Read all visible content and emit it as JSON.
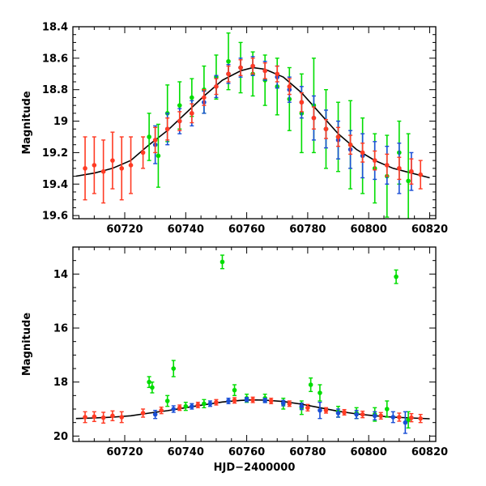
{
  "chart_data": [
    {
      "type": "scatter",
      "title": "",
      "xlabel": "",
      "ylabel": "Magnitude",
      "xlim": [
        60703,
        60822
      ],
      "ylim": [
        19.62,
        18.4
      ],
      "y_inverted": true,
      "xticks": [
        60720,
        60740,
        60760,
        60780,
        60800,
        60820
      ],
      "xtick_labels": [
        "60720",
        "60740",
        "60760",
        "60780",
        "60800",
        "60820"
      ],
      "yticks": [
        18.4,
        18.6,
        18.8,
        19,
        19.2,
        19.4,
        19.6
      ],
      "ytick_labels": [
        "18.4",
        "18.6",
        "18.8",
        "19",
        "19.2",
        "19.4",
        "19.6"
      ],
      "error_bars": true,
      "model": {
        "type": "line",
        "color": "#000000",
        "x": [
          60704,
          60710,
          60716,
          60722,
          60728,
          60734,
          60740,
          60746,
          60752,
          60758,
          60762,
          60766,
          60772,
          60778,
          60784,
          60790,
          60796,
          60802,
          60808,
          60814,
          60820
        ],
        "mag": [
          19.35,
          19.33,
          19.3,
          19.25,
          19.15,
          19.06,
          18.95,
          18.84,
          18.74,
          18.68,
          18.66,
          18.67,
          18.72,
          18.82,
          18.95,
          19.08,
          19.18,
          19.25,
          19.3,
          19.33,
          19.36
        ]
      },
      "series": [
        {
          "color": "#00dd00",
          "x": [
            60728,
            60731,
            60734,
            60738,
            60742,
            60746,
            60750,
            60754,
            60758,
            60762,
            60766,
            60770,
            60774,
            60778,
            60782,
            60786,
            60790,
            60794,
            60798,
            60802,
            60806,
            60810,
            60813
          ],
          "mag": [
            19.1,
            19.22,
            18.95,
            18.9,
            18.85,
            18.8,
            18.72,
            18.62,
            18.66,
            18.7,
            18.74,
            18.78,
            18.86,
            18.95,
            18.9,
            19.05,
            19.1,
            19.15,
            19.22,
            19.3,
            19.35,
            19.2,
            19.38
          ],
          "err": [
            0.15,
            0.2,
            0.18,
            0.15,
            0.12,
            0.15,
            0.14,
            0.18,
            0.16,
            0.14,
            0.16,
            0.18,
            0.2,
            0.25,
            0.3,
            0.25,
            0.22,
            0.28,
            0.24,
            0.22,
            0.26,
            0.2,
            0.3
          ]
        },
        {
          "color": "#1a4fd6",
          "x": [
            60730,
            60734,
            60738,
            60742,
            60746,
            60750,
            60754,
            60758,
            60762,
            60766,
            60770,
            60774,
            60778,
            60782,
            60786,
            60790,
            60794,
            60798,
            60802,
            60806,
            60810,
            60814
          ],
          "mag": [
            19.15,
            19.05,
            19.0,
            18.95,
            18.88,
            18.78,
            18.7,
            18.66,
            18.65,
            18.68,
            18.72,
            18.8,
            18.88,
            18.98,
            19.05,
            19.12,
            19.18,
            19.22,
            19.25,
            19.28,
            19.3,
            19.32
          ],
          "err": [
            0.12,
            0.1,
            0.08,
            0.08,
            0.07,
            0.07,
            0.06,
            0.06,
            0.06,
            0.06,
            0.07,
            0.08,
            0.1,
            0.14,
            0.12,
            0.12,
            0.12,
            0.14,
            0.12,
            0.12,
            0.16,
            0.12
          ]
        },
        {
          "color": "#ff3b24",
          "x": [
            60707,
            60710,
            60713,
            60716,
            60719,
            60722,
            60726,
            60730,
            60734,
            60738,
            60742,
            60746,
            60750,
            60754,
            60758,
            60762,
            60766,
            60770,
            60774,
            60778,
            60782,
            60786,
            60790,
            60794,
            60798,
            60802,
            60806,
            60810,
            60814,
            60817
          ],
          "mag": [
            19.3,
            19.28,
            19.32,
            19.25,
            19.3,
            19.28,
            19.2,
            19.12,
            19.05,
            19.0,
            18.95,
            18.85,
            18.78,
            18.7,
            18.66,
            18.65,
            18.68,
            18.7,
            18.78,
            18.88,
            18.98,
            19.05,
            19.1,
            19.15,
            19.2,
            19.25,
            19.28,
            19.3,
            19.32,
            19.34
          ],
          "err": [
            0.2,
            0.18,
            0.2,
            0.18,
            0.2,
            0.18,
            0.1,
            0.08,
            0.07,
            0.06,
            0.06,
            0.05,
            0.05,
            0.05,
            0.05,
            0.05,
            0.05,
            0.05,
            0.05,
            0.06,
            0.07,
            0.06,
            0.06,
            0.06,
            0.06,
            0.06,
            0.07,
            0.07,
            0.08,
            0.09
          ]
        }
      ]
    },
    {
      "type": "scatter",
      "title": "",
      "xlabel": "HJD−2400000",
      "ylabel": "Magnitude",
      "xlim": [
        60703,
        60822
      ],
      "ylim": [
        20.2,
        13.0
      ],
      "y_inverted": true,
      "xticks": [
        60720,
        60740,
        60760,
        60780,
        60800,
        60820
      ],
      "xtick_labels": [
        "60720",
        "60740",
        "60760",
        "60780",
        "60800",
        "60820"
      ],
      "yticks": [
        14,
        16,
        18,
        20
      ],
      "ytick_labels": [
        "14",
        "16",
        "18",
        "20"
      ],
      "error_bars": true,
      "model": {
        "type": "line",
        "color": "#000000",
        "x": [
          60704,
          60710,
          60716,
          60722,
          60728,
          60734,
          60740,
          60746,
          60752,
          60758,
          60762,
          60766,
          60772,
          60778,
          60784,
          60790,
          60796,
          60802,
          60808,
          60814,
          60820
        ],
        "mag": [
          19.35,
          19.33,
          19.3,
          19.25,
          19.15,
          19.06,
          18.95,
          18.84,
          18.74,
          18.68,
          18.66,
          18.67,
          18.72,
          18.82,
          18.95,
          19.08,
          19.18,
          19.25,
          19.3,
          19.33,
          19.36
        ]
      },
      "series": [
        {
          "color": "#00dd00",
          "x": [
            60728,
            60729,
            60734,
            60736,
            60740,
            60746,
            60752,
            60756,
            60760,
            60766,
            60772,
            60778,
            60781,
            60784,
            60790,
            60796,
            60802,
            60806,
            60809,
            60813
          ],
          "mag": [
            18.0,
            18.2,
            18.7,
            17.5,
            18.9,
            18.8,
            13.55,
            18.3,
            18.6,
            18.6,
            18.8,
            18.95,
            18.1,
            18.4,
            19.1,
            19.15,
            19.2,
            19.0,
            14.1,
            19.4
          ],
          "err": [
            0.2,
            0.2,
            0.2,
            0.3,
            0.15,
            0.15,
            0.25,
            0.2,
            0.15,
            0.15,
            0.2,
            0.25,
            0.25,
            0.3,
            0.2,
            0.2,
            0.25,
            0.3,
            0.25,
            0.3
          ]
        },
        {
          "color": "#1a4fd6",
          "x": [
            60730,
            60736,
            60742,
            60748,
            60754,
            60760,
            60766,
            60772,
            60778,
            60784,
            60790,
            60796,
            60802,
            60808,
            60812
          ],
          "mag": [
            19.2,
            19.0,
            18.9,
            18.8,
            18.7,
            18.65,
            18.68,
            18.78,
            18.9,
            19.05,
            19.15,
            19.2,
            19.25,
            19.3,
            19.5
          ],
          "err": [
            0.15,
            0.12,
            0.1,
            0.1,
            0.1,
            0.08,
            0.08,
            0.1,
            0.12,
            0.3,
            0.15,
            0.15,
            0.15,
            0.2,
            0.4
          ]
        },
        {
          "color": "#ff3b24",
          "x": [
            60707,
            60710,
            60713,
            60716,
            60719,
            60726,
            60732,
            60738,
            60744,
            60750,
            60756,
            60762,
            60768,
            60774,
            60780,
            60786,
            60792,
            60798,
            60804,
            60810,
            60814,
            60817
          ],
          "mag": [
            19.3,
            19.28,
            19.32,
            19.25,
            19.3,
            19.15,
            19.05,
            18.95,
            18.85,
            18.75,
            18.68,
            18.66,
            18.7,
            18.8,
            18.95,
            19.05,
            19.12,
            19.2,
            19.25,
            19.3,
            19.32,
            19.35
          ],
          "err": [
            0.2,
            0.18,
            0.2,
            0.18,
            0.2,
            0.15,
            0.12,
            0.1,
            0.1,
            0.1,
            0.1,
            0.1,
            0.1,
            0.1,
            0.12,
            0.1,
            0.1,
            0.12,
            0.12,
            0.15,
            0.15,
            0.15
          ]
        }
      ]
    }
  ]
}
